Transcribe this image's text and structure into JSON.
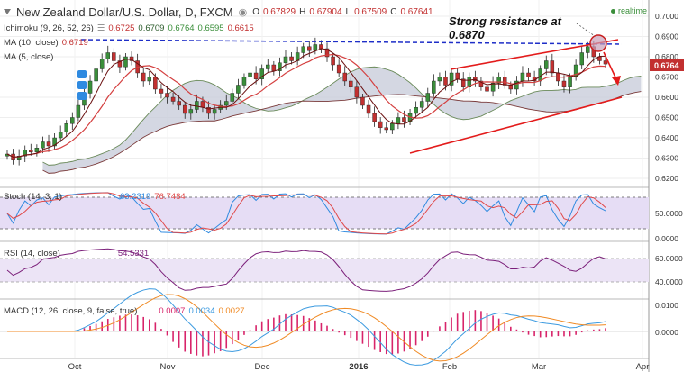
{
  "header": {
    "title": "New Zealand Dollar/U.S. Dollar, D, FXCM",
    "ohlc": [
      {
        "k": "O",
        "v": "0.67829"
      },
      {
        "k": "H",
        "v": "0.67904"
      },
      {
        "k": "L",
        "v": "0.67509"
      },
      {
        "k": "C",
        "v": "0.67641"
      }
    ],
    "realtime": "realtime"
  },
  "indicators": {
    "ichimoku": {
      "label": "Ichimoku (9, 26, 52, 26)",
      "values": [
        "0.6725",
        "0.6709",
        "0.6764",
        "0.6595",
        "0.6615"
      ]
    },
    "ma10": {
      "label": "MA (10, close)",
      "value": "0.6719"
    },
    "ma5": {
      "label": "MA (5, close)"
    }
  },
  "annotation": {
    "line1": "Strong resistance at",
    "line2": "0.6870"
  },
  "last_price": "0.6764",
  "colors": {
    "up": "#3a8e3a",
    "down": "#c23030",
    "ma10": "#d43f3f",
    "ma5": "#6a0f0f",
    "cloud": "#c6cad8",
    "cloud_edge": "#6a8a5a",
    "resist": "#1e2ec8",
    "trend": "#e31b1b",
    "stoch_k": "#2f8ae0",
    "stoch_d": "#e04848",
    "stoch_band": "#e6ddf5",
    "rsi": "#7b1f7a",
    "macd": "#3d9be0",
    "signal": "#f08a24",
    "hist": "#d8246a"
  },
  "stoch": {
    "label": "Stoch (14, 3, 1)",
    "k": "63.2319",
    "d": "76.7484",
    "ticks": [
      "50.0000",
      "0.0000"
    ]
  },
  "rsi": {
    "label": "RSI (14, close)",
    "value": "54.5331",
    "ticks": [
      "60.0000",
      "40.0000"
    ]
  },
  "macd": {
    "label": "MACD (12, 26, close, 9, false, true)",
    "values": [
      "0.0007",
      "0.0034",
      "0.0027"
    ],
    "ticks": [
      "0.0100",
      "0.0000"
    ]
  },
  "chart_data": {
    "type": "candlestick",
    "x_ticks": [
      "Oct",
      "Nov",
      "Dec",
      "2016",
      "Feb",
      "Mar",
      "Apr"
    ],
    "y_ticks": [
      "0.7000",
      "0.6900",
      "0.6800",
      "0.6700",
      "0.6600",
      "0.6500",
      "0.6400",
      "0.6300",
      "0.6200"
    ],
    "ylim": [
      0.62,
      0.7
    ],
    "resistance": 0.687,
    "close": [
      0.632,
      0.629,
      0.631,
      0.634,
      0.633,
      0.635,
      0.638,
      0.636,
      0.64,
      0.643,
      0.647,
      0.65,
      0.656,
      0.662,
      0.668,
      0.674,
      0.679,
      0.682,
      0.678,
      0.675,
      0.68,
      0.678,
      0.672,
      0.668,
      0.67,
      0.664,
      0.662,
      0.66,
      0.658,
      0.656,
      0.652,
      0.654,
      0.658,
      0.655,
      0.652,
      0.654,
      0.656,
      0.658,
      0.662,
      0.666,
      0.67,
      0.672,
      0.669,
      0.674,
      0.676,
      0.673,
      0.677,
      0.68,
      0.678,
      0.682,
      0.685,
      0.683,
      0.686,
      0.684,
      0.68,
      0.676,
      0.672,
      0.668,
      0.665,
      0.66,
      0.656,
      0.652,
      0.648,
      0.645,
      0.644,
      0.647,
      0.65,
      0.648,
      0.652,
      0.655,
      0.658,
      0.662,
      0.668,
      0.67,
      0.666,
      0.672,
      0.669,
      0.665,
      0.67,
      0.668,
      0.665,
      0.663,
      0.667,
      0.67,
      0.666,
      0.664,
      0.668,
      0.672,
      0.67,
      0.668,
      0.674,
      0.678,
      0.672,
      0.668,
      0.665,
      0.67,
      0.676,
      0.682,
      0.685,
      0.68,
      0.678,
      0.6764
    ]
  }
}
